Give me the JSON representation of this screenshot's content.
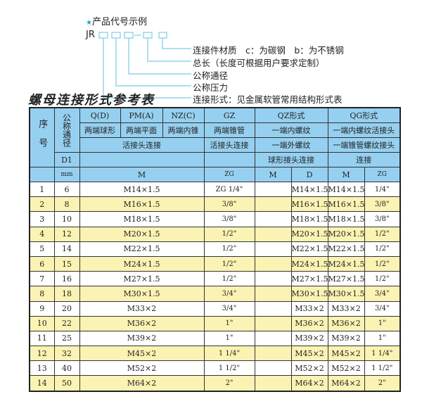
{
  "example": {
    "title": "产品代号示例",
    "star_icon": "star",
    "code_prefix": "JR",
    "labels": [
      "连接件材质　c：为碳钢　b：为不锈钢",
      "总长（长度可根据用户要求定制）",
      "公称通径",
      "公称压力",
      "连接形式：见金属软管常用结构形式表"
    ]
  },
  "table_title": "螺母连接形式参考表",
  "header": {
    "seq": "序号",
    "nominal": "公称通径",
    "d1": "D1",
    "mm": "mm",
    "qd": "Q(D)",
    "pm": "PM(A)",
    "nz": "NZ(C)",
    "gz": "GZ",
    "qz": "QZ形式",
    "qg": "QG形式",
    "qd_desc": "两端球形",
    "pm_desc": "两端平面",
    "nz_desc": "两端内锥",
    "gz_desc": "两端锥管",
    "qz_desc1": "一端内螺纹",
    "qg_desc1": "一端内螺纹活接头",
    "union1": "活接头连接",
    "union2": "活接头连接",
    "qz_desc2": "一端外螺纹",
    "qg_desc2": "一端锥管螺纹接头",
    "qz_desc3": "球形接头连接",
    "qg_desc3": "连接",
    "m": "M",
    "zg": "ZG",
    "qz_m": "M",
    "qz_d": "D",
    "qg_m": "M",
    "qg_zg": "ZG"
  },
  "rows": [
    {
      "no": "1",
      "dn": "6",
      "m": "M14×1.5",
      "zg": "ZG 1/4\"",
      "qz_m": "",
      "qz_d": "M14×1.5",
      "qg_m": "M14×1.5",
      "qg_zg": "1/4\""
    },
    {
      "no": "2",
      "dn": "8",
      "m": "M16×1.5",
      "zg": "3/8\"",
      "qz_m": "",
      "qz_d": "M16×1.5",
      "qg_m": "M16×1.5",
      "qg_zg": "3/8\""
    },
    {
      "no": "3",
      "dn": "10",
      "m": "M18×1.5",
      "zg": "3/8\"",
      "qz_m": "",
      "qz_d": "M18×1.5",
      "qg_m": "M18×1.5",
      "qg_zg": "3/8\""
    },
    {
      "no": "4",
      "dn": "12",
      "m": "M20×1.5",
      "zg": "1/2\"",
      "qz_m": "",
      "qz_d": "M20×1.5",
      "qg_m": "M20×1.5",
      "qg_zg": "1/2\""
    },
    {
      "no": "5",
      "dn": "14",
      "m": "M22×1.5",
      "zg": "1/2\"",
      "qz_m": "",
      "qz_d": "M22×1.5",
      "qg_m": "M22×1.5",
      "qg_zg": "1/2\""
    },
    {
      "no": "6",
      "dn": "15",
      "m": "M24×1.5",
      "zg": "1/2\"",
      "qz_m": "",
      "qz_d": "M24×1.5",
      "qg_m": "M24×1.5",
      "qg_zg": "1/2\""
    },
    {
      "no": "7",
      "dn": "16",
      "m": "M27×1.5",
      "zg": "1/2\"",
      "qz_m": "",
      "qz_d": "M27×1.5",
      "qg_m": "M27×1.5",
      "qg_zg": "1/2\""
    },
    {
      "no": "8",
      "dn": "18",
      "m": "M30×1.5",
      "zg": "3/4\"",
      "qz_m": "",
      "qz_d": "M30×1.5",
      "qg_m": "M30×1.5",
      "qg_zg": "3/4\""
    },
    {
      "no": "9",
      "dn": "20",
      "m": "M33×2",
      "zg": "3/4\"",
      "qz_m": "",
      "qz_d": "M33×2",
      "qg_m": "M33×2",
      "qg_zg": "3/4\""
    },
    {
      "no": "10",
      "dn": "22",
      "m": "M36×2",
      "zg": "1\"",
      "qz_m": "",
      "qz_d": "M36×2",
      "qg_m": "M36×2",
      "qg_zg": "1\""
    },
    {
      "no": "11",
      "dn": "25",
      "m": "M39×2",
      "zg": "1\"",
      "qz_m": "",
      "qz_d": "M39×2",
      "qg_m": "M39×2",
      "qg_zg": "1\""
    },
    {
      "no": "12",
      "dn": "32",
      "m": "M45×2",
      "zg": "1 1/4\"",
      "qz_m": "",
      "qz_d": "M45×2",
      "qg_m": "M45×2",
      "qg_zg": "1 1/4\""
    },
    {
      "no": "13",
      "dn": "40",
      "m": "M52×2",
      "zg": "1 1/2\"",
      "qz_m": "",
      "qz_d": "M52×2",
      "qg_m": "M52×2",
      "qg_zg": "1 1/2\""
    },
    {
      "no": "14",
      "dn": "50",
      "m": "M64×2",
      "zg": "2\"",
      "qz_m": "",
      "qz_d": "M64×2",
      "qg_m": "M64×2",
      "qg_zg": "2\""
    }
  ],
  "colors": {
    "header_bg": "#96d0f0",
    "alt_row_bg": "#fbf3b3",
    "accent": "#2a9fd6"
  }
}
